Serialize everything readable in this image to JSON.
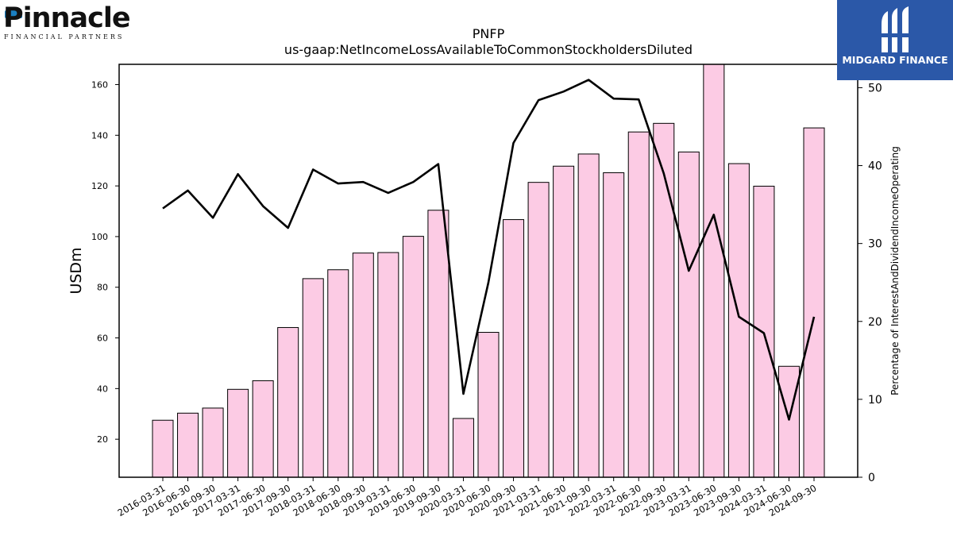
{
  "logos": {
    "left_brand": "Pinnacle",
    "left_tagline": "FINANCIAL PARTNERS",
    "right_brand": "MIDGARD FINANCE"
  },
  "chart_data": {
    "type": "bar",
    "title": "PNFP",
    "subtitle": "us-gaap:NetIncomeLossAvailableToCommonStockholdersDiluted",
    "ylabel_left": "USDm",
    "ylabel_right": "Percentage of InterestAndDividendIncomeOperating",
    "ylim_left": [
      5,
      168
    ],
    "ylim_right": [
      0,
      53
    ],
    "yticks_left": [
      20,
      40,
      60,
      80,
      100,
      120,
      140,
      160
    ],
    "yticks_right": [
      0,
      10,
      20,
      30,
      40,
      50
    ],
    "categories": [
      "2016-03-31",
      "2016-06-30",
      "2016-09-30",
      "2017-03-31",
      "2017-06-30",
      "2017-09-30",
      "2018-03-31",
      "2018-06-30",
      "2018-09-30",
      "2019-03-31",
      "2019-06-30",
      "2019-09-30",
      "2020-03-31",
      "2020-06-30",
      "2020-09-30",
      "2021-03-31",
      "2021-06-30",
      "2021-09-30",
      "2022-03-31",
      "2022-06-30",
      "2022-09-30",
      "2023-03-31",
      "2023-06-30",
      "2023-09-30",
      "2024-03-31",
      "2024-06-30",
      "2024-09-30"
    ],
    "series": [
      {
        "axis": "left",
        "type": "bar",
        "color": "#fccbe4",
        "values": [
          27.5,
          30.3,
          32.3,
          39.7,
          43.1,
          64.1,
          83.4,
          86.9,
          93.5,
          93.7,
          100.1,
          110.4,
          28.2,
          62.2,
          106.7,
          121.4,
          127.8,
          132.6,
          125.2,
          141.3,
          144.7,
          133.4,
          169.0,
          128.8,
          119.9,
          48.8,
          142.9
        ]
      },
      {
        "axis": "right",
        "type": "line",
        "color": "#000000",
        "values": [
          34.5,
          36.8,
          33.3,
          38.9,
          34.8,
          32.0,
          39.5,
          37.7,
          37.9,
          36.5,
          37.9,
          40.2,
          10.7,
          25.0,
          42.9,
          48.4,
          49.5,
          51.0,
          48.6,
          48.5,
          39.0,
          26.5,
          33.7,
          20.6,
          18.5,
          7.4,
          20.6
        ]
      }
    ]
  }
}
